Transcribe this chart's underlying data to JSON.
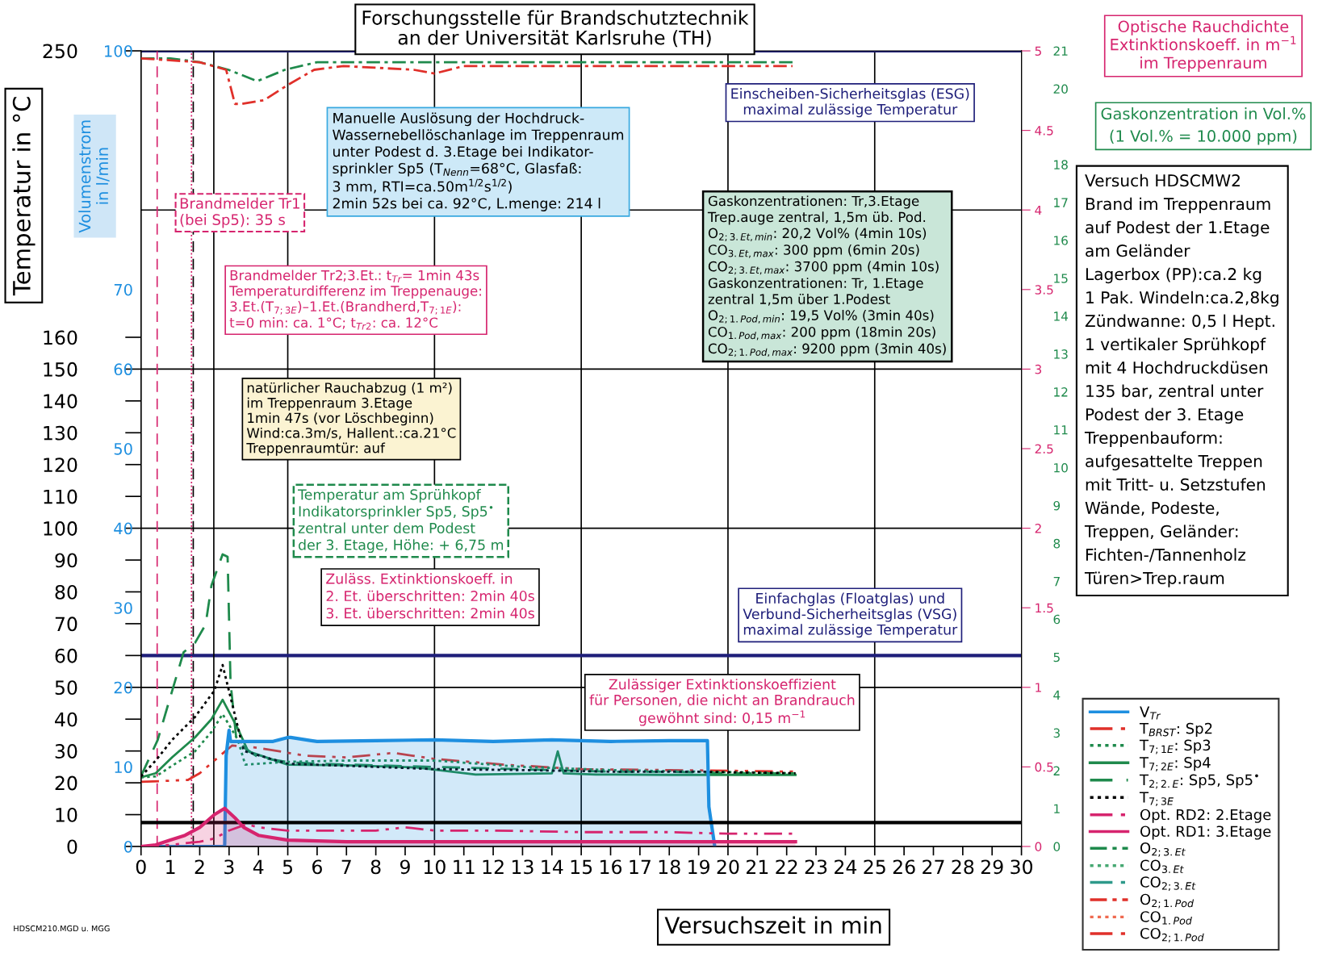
{
  "chart_data": [
    {
      "type": "line",
      "title": "Forschungsstelle für Brandschutztechnik\nan der Universität Karlsruhe (TH)",
      "xlabel": "Versuchszeit in min",
      "ylabel": "Temperatur in °C",
      "y2label": "Volumenstrom\nin l/min",
      "y3label": "Optische Rauchdichte\nExtinktionskoeff. in m$^{−1}$\nim Treppenraum",
      "xlim": [
        0,
        30
      ],
      "xticks": [
        0,
        1,
        2,
        3,
        4,
        5,
        6,
        7,
        8,
        9,
        10,
        11,
        12,
        13,
        14,
        15,
        16,
        17,
        18,
        19,
        20,
        21,
        22,
        23,
        24,
        25,
        26,
        27,
        28,
        29,
        30
      ],
      "ylim": [
        0,
        250
      ],
      "yticks": [
        0,
        10,
        20,
        30,
        40,
        50,
        60,
        70,
        80,
        90,
        100,
        110,
        120,
        130,
        140,
        150,
        160,
        250
      ],
      "y2lim": [
        0,
        100
      ],
      "y2ticks": [
        0,
        10,
        20,
        30,
        40,
        50,
        60,
        70,
        100
      ],
      "y3lim": [
        0,
        5
      ],
      "y3ticks": [
        0,
        0.5,
        1,
        1.5,
        2,
        2.5,
        3,
        3.5,
        4,
        4.5,
        5
      ],
      "legend": "right",
      "series": [
        {
          "name": "V$_{Tr}$",
          "type": "area",
          "axis": "y2",
          "color": "#1e8fe0",
          "line_style": "solid",
          "x": [
            0,
            2.85,
            2.9,
            3.0,
            3.05,
            3.5,
            4.5,
            5.0,
            5.1,
            5.8,
            6.0,
            8.0,
            10.0,
            12.0,
            14.0,
            16.0,
            18.0,
            19.3,
            19.35,
            19.55
          ],
          "values": [
            0,
            0,
            11.4,
            14.6,
            13.2,
            13.2,
            13.2,
            13.7,
            13.7,
            13.3,
            13.2,
            13.3,
            13.4,
            13.2,
            13.4,
            13.2,
            13.3,
            13.3,
            5,
            0
          ]
        },
        {
          "name": "T$_{BRST}$: Sp2",
          "color": "#e0302a",
          "line_style": "dashdotdot",
          "x": [
            0,
            1.6,
            2.0,
            2.5,
            3.1,
            4.0,
            5.6,
            7,
            8.6,
            10,
            12.4,
            15,
            18,
            20,
            22.3
          ],
          "values": [
            20.3,
            20.9,
            23,
            27,
            31.7,
            31,
            28.5,
            28,
            29.4,
            27.5,
            25.7,
            24.3,
            24,
            23.8,
            23.5
          ]
        },
        {
          "name": "T$_{7;1E}$: Sp3",
          "color": "#1f8a4c",
          "line_style": "dotted",
          "x": [
            0,
            0.5,
            1.0,
            1.84,
            2.4,
            2.78,
            3.3,
            3.55,
            5,
            7,
            10,
            13,
            16,
            19,
            22.3
          ],
          "values": [
            21.7,
            22,
            25,
            29.9,
            36,
            41.6,
            33.5,
            25.7,
            26.6,
            27,
            27,
            25,
            24,
            23.5,
            23
          ]
        },
        {
          "name": "T$_{7;2E}$: Sp4",
          "color": "#1f8a4c",
          "line_style": "solid",
          "x": [
            0,
            0.5,
            1.06,
            1.84,
            2.4,
            2.78,
            3.3,
            3.65,
            5,
            7,
            9.4,
            11.4,
            14.0,
            14.2,
            14.4,
            15.5,
            18,
            20,
            22.3
          ],
          "values": [
            21.7,
            23,
            28,
            34.3,
            40,
            46.1,
            37,
            29.9,
            25.7,
            25.5,
            24.8,
            22.6,
            23,
            29.9,
            23,
            22.6,
            22.5,
            22.5,
            22.5
          ]
        },
        {
          "name": "T$_{2;2.E}$: Sp5, Sp5$^{•}$",
          "color": "#1f8a4c",
          "line_style": "dashed",
          "x": [
            0,
            0.57,
            1.0,
            1.45,
            1.84,
            2.2,
            2.4,
            2.78,
            2.95,
            3.05,
            3.25,
            3.55,
            4,
            5,
            6,
            8,
            10,
            12,
            14,
            16,
            18,
            20,
            22.3
          ],
          "values": [
            22.1,
            33.5,
            47,
            61,
            64,
            69.7,
            82,
            91.8,
            91,
            51.5,
            33.5,
            30.8,
            28,
            26.5,
            26,
            25.5,
            25,
            24.5,
            24,
            23.5,
            23.5,
            23,
            23
          ]
        },
        {
          "name": "T$_{7;3E}$",
          "color": "#000000",
          "line_style": "dotted",
          "x": [
            0,
            0.5,
            1.06,
            1.84,
            2.5,
            2.78,
            3.1,
            3.5,
            5,
            8,
            10,
            13,
            16,
            19,
            22.3
          ],
          "values": [
            22,
            27,
            33.5,
            40.7,
            49,
            57,
            45,
            30,
            26,
            25,
            24.3,
            24,
            23.5,
            23.5,
            23
          ]
        },
        {
          "name": "Opt. RD2: 2.Etage",
          "type": "line",
          "axis": "y3",
          "color": "#d6246e",
          "line_style": "dashdotdot",
          "x": [
            0,
            1,
            2,
            2.5,
            3,
            3.6,
            4,
            5,
            6,
            8,
            9,
            10,
            12,
            15,
            18,
            20,
            22.3
          ],
          "values": [
            0,
            0.01,
            0.03,
            0.05,
            0.1,
            0.14,
            0.12,
            0.1,
            0.1,
            0.1,
            0.12,
            0.1,
            0.1,
            0.09,
            0.09,
            0.08,
            0.08
          ]
        },
        {
          "name": "Opt. RD1: 3.Etage",
          "type": "area",
          "axis": "y3",
          "color": "#d6246e",
          "line_style": "solid",
          "x": [
            0,
            0.5,
            1,
            1.5,
            2,
            2.5,
            2.85,
            3.2,
            3.5,
            4,
            5,
            7,
            10,
            15,
            20,
            22.3
          ],
          "values": [
            0,
            0.01,
            0.04,
            0.07,
            0.12,
            0.2,
            0.24,
            0.18,
            0.12,
            0.07,
            0.04,
            0.03,
            0.03,
            0.03,
            0.03,
            0.03
          ]
        }
      ],
      "ref_lines": [
        {
          "axis": "x",
          "value": 5,
          "color": "#000000"
        },
        {
          "axis": "x",
          "value": 10,
          "color": "#000000"
        },
        {
          "axis": "x",
          "value": 15,
          "color": "#000000"
        },
        {
          "axis": "x",
          "value": 20,
          "color": "#000000"
        },
        {
          "axis": "x",
          "value": 25,
          "color": "#000000"
        },
        {
          "axis": "y",
          "value": 50,
          "color": "#000000"
        },
        {
          "axis": "y",
          "value": 100,
          "color": "#000000"
        },
        {
          "axis": "y",
          "value": 150,
          "color": "#000000"
        },
        {
          "axis": "y",
          "value": 200,
          "color": "#000000"
        },
        {
          "axis": "y",
          "value": 250,
          "color": "#1f1f7a"
        },
        {
          "axis": "y",
          "value": 60,
          "color": "#1f1f7a"
        },
        {
          "axis": "y3",
          "value": 0.15,
          "color": "#000000"
        },
        {
          "axis": "x",
          "value": 0.55,
          "color": "#d6246e",
          "line_style": "dashed"
        },
        {
          "axis": "x",
          "value": 1.72,
          "color": "#d6246e",
          "line_style": "dotted"
        },
        {
          "axis": "x",
          "value": 1.78,
          "color": "#000000",
          "line_style": "dashed"
        },
        {
          "axis": "x",
          "value": 2.48,
          "color": "#000000"
        }
      ],
      "annotations": [
        "Versuch HDSCMW2\nBrand im Treppenraum\nauf Podest der 1.Etage\nam Geländer\nLagerbox (PP):ca.2 kg\n1 Pak. Windeln:ca.2,8kg\nZündwanne: 0,5 l Hept.\n1 vertikaler Sprühkopf\nmit 4 Hochdruckdüsen\n135 bar, zentral unter\nPodest der 3. Etage\nTreppenbauform:\naufgesattelte Treppen\nmit Tritt- u. Setzstufen\nWände, Podeste,\nTreppen, Geländer:\nFichten-/Tannenholz\nTüren>Trep.raum",
        "Manuelle Auslösung der Hochdruck-\nWassernebellöschanlage im Treppenraum\nunter Podest d. 3.Etage bei Indikator-\nsprinkler Sp5 (T$_{Nenn}$=68°C, Glasfaß:\n3 mm, RTI=ca.50m$^{1/2}$s$^{1/2}$)\n2min 52s bei ca. 92°C, L.menge: 214 l",
        "Brandmelder Tr1\n(bei Sp5): 35 s",
        "Brandmelder Tr2;3.Et.: t$_{Tr}$= 1min 43s\nTemperaturdifferenz im Treppenauge:\n3.Et.(T$_{7;3E}$)–1.Et.(Brandherd,T$_{7;1E}$):\nt=0 min: ca. 1°C; t$_{Tr2}$: ca. 12°C",
        "natürlicher Rauchabzug (1 m²)\nim Treppenraum 3.Etage\n1min 47s (vor Löschbeginn)\nWind:ca.3m/s, Hallent.:ca.21°C\nTreppenraumtür: auf",
        "Gaskonzentrationen: Tr,3.Etage\nTrep.auge zentral, 1,5m üb. Pod.\nO$_{2;3.Et,min}$: 20,2 Vol% (4min 10s)\nCO$_{3.Et,max}$: 300 ppm (6min 20s)\nCO$_{2;3.Et,max}$: 3700 ppm (4min 10s)\nGaskonzentrationen: Tr, 1.Etage\nzentral 1,5m über 1.Podest\nO$_{2;1.Pod,min}$: 19,5 Vol% (3min 40s)\nCO$_{1.Pod,max}$: 200 ppm (18min 20s)\nCO$_{2;1.Pod,max}$: 9200 ppm (3min 40s)",
        "Einscheiben-Sicherheitsglas (ESG)\nmaximal zulässige Temperatur",
        "Temperatur am Sprühkopf\nIndikatorsprinkler Sp5, Sp5$^{•}$\nzentral unter dem Podest\nder 3. Etage, Höhe: + 6,75 m",
        "Zuläss. Extinktionskoeff. in\n2. Et. überschritten: 2min 40s\n3. Et. überschritten: 2min 40s",
        "Einfachglas (Floatglas) und\nVerbund-Sicherheitsglas (VSG)\nmaximal zulässige Temperatur",
        "Zulässiger Extinktionskoeffizient\nfür Personen, die nicht an Brandrauch\ngewöhnt sind: 0,15 m$^{−1}$",
        "HDSCM210.MGD u. MGG"
      ]
    },
    {
      "type": "line",
      "ylabel": "Gaskonzentration in Vol.%\n(1 Vol.% = 10.000 ppm)",
      "xlim": [
        0,
        30
      ],
      "ylim": [
        0,
        21
      ],
      "yticks": [
        0,
        1,
        2,
        3,
        4,
        5,
        6,
        7,
        8,
        9,
        10,
        11,
        12,
        13,
        14,
        15,
        16,
        17,
        18,
        20,
        21
      ],
      "tick_labels": "y",
      "legend": "right",
      "series": [
        {
          "name": "O$_{2;3.Et}$",
          "color": "#1f8a4c",
          "line_style": "dashdot",
          "x": [
            0,
            1,
            2,
            2.98,
            3.96,
            4.9,
            6.0,
            8,
            10,
            12,
            14,
            16,
            18,
            20,
            22.2
          ],
          "values": [
            20.8,
            20.8,
            20.7,
            20.5,
            20.2,
            20.5,
            20.7,
            20.7,
            20.7,
            20.7,
            20.7,
            20.7,
            20.7,
            20.7,
            20.7
          ]
        },
        {
          "name": "CO$_{3.Et}$",
          "color": "#46a872",
          "line_style": "dotted",
          "values": [
            null
          ]
        },
        {
          "name": "CO$_{2;3.Et}$",
          "color": "#2e9a8a",
          "line_style": "dashdotdot",
          "values": [
            null
          ]
        },
        {
          "name": "O$_{2;1.Pod}$",
          "color": "#e0302a",
          "line_style": "dashdot",
          "x": [
            0,
            2.0,
            2.9,
            3.2,
            3.45,
            4.2,
            5.0,
            5.9,
            6.9,
            9.3,
            10,
            11,
            14,
            18,
            22.2
          ],
          "values": [
            20.8,
            20.7,
            20.5,
            19.6,
            19.6,
            19.7,
            20.1,
            20.5,
            20.6,
            20.5,
            20.4,
            20.6,
            20.6,
            20.6,
            20.6
          ]
        },
        {
          "name": "CO$_{1.Pod}$",
          "color": "#ef6a50",
          "line_style": "dotted",
          "values": [
            null
          ]
        },
        {
          "name": "CO$_{2;1.Pod}$",
          "color": "#e0302a",
          "line_style": "dashdotdot",
          "values": [
            null
          ]
        }
      ]
    }
  ]
}
